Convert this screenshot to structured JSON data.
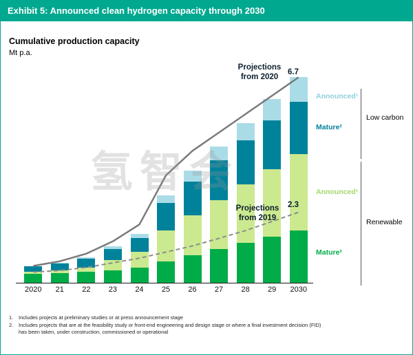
{
  "header": {
    "title": "Exhibit 5: Announced clean hydrogen capacity through 2030"
  },
  "chart": {
    "title": "Cumulative production capacity",
    "unit": "Mt p.a."
  },
  "chart_data": {
    "type": "bar",
    "stacked": true,
    "title": "Cumulative production capacity",
    "ylabel": "Mt p.a.",
    "ylim": [
      0,
      7
    ],
    "grid": false,
    "legend_position": "right",
    "categories": [
      "2020",
      "21",
      "22",
      "23",
      "24",
      "25",
      "26",
      "27",
      "28",
      "29",
      "2030"
    ],
    "series": [
      {
        "name": "Renewable Mature",
        "color": "#00AC47",
        "values": [
          0.3,
          0.32,
          0.35,
          0.4,
          0.5,
          0.7,
          0.9,
          1.1,
          1.3,
          1.5,
          1.7
        ]
      },
      {
        "name": "Renewable Announced",
        "color": "#CBE98F",
        "values": [
          0.05,
          0.08,
          0.15,
          0.35,
          0.5,
          1.0,
          1.3,
          1.6,
          1.9,
          2.2,
          2.5
        ]
      },
      {
        "name": "Low carbon Mature",
        "color": "#00829B",
        "values": [
          0.2,
          0.22,
          0.28,
          0.35,
          0.45,
          0.9,
          1.1,
          1.3,
          1.45,
          1.6,
          1.7
        ]
      },
      {
        "name": "Low carbon Announced",
        "color": "#AADCE8",
        "values": [
          0.0,
          0.03,
          0.05,
          0.1,
          0.15,
          0.25,
          0.35,
          0.45,
          0.55,
          0.7,
          0.8
        ]
      }
    ],
    "lines": [
      {
        "name": "Projections from 2020",
        "style": "solid",
        "color": "#7A7A7A",
        "width": 2.5,
        "end_label": "6.7",
        "values": [
          0.55,
          0.7,
          0.95,
          1.35,
          1.9,
          3.5,
          4.3,
          4.9,
          5.5,
          6.1,
          6.7
        ]
      },
      {
        "name": "Projections from 2019",
        "style": "dashed",
        "color": "#8C8C8C",
        "width": 2,
        "end_label": "2.3",
        "values": [
          0.35,
          0.4,
          0.5,
          0.65,
          0.8,
          1.0,
          1.2,
          1.45,
          1.7,
          2.0,
          2.3
        ]
      }
    ]
  },
  "annotations": {
    "proj2020_label": "Projections\nfrom 2020",
    "proj2020_value": "6.7",
    "proj2019_label": "Projections\nfrom 2019",
    "proj2019_value": "2.3"
  },
  "legend": {
    "low_carbon": {
      "group_label": "Low carbon",
      "announced": {
        "label": "Announced¹",
        "color": "#8ED0DF"
      },
      "mature": {
        "label": "Mature²",
        "color": "#00829B"
      }
    },
    "renewable": {
      "group_label": "Renewable",
      "announced": {
        "label": "Announced¹",
        "color": "#A2D96A"
      },
      "mature": {
        "label": "Mature²",
        "color": "#00AC47"
      }
    }
  },
  "footnotes": [
    {
      "num": "1.",
      "text": "Includes projects at preliminary studies or at press announcement stage"
    },
    {
      "num": "2.",
      "text": "Includes projects that are at the feasibility study or front-end engineering and design stage or where a final investment decision (FID) has been taken, under construction, commissioned or operational"
    }
  ],
  "watermark": "氢智会",
  "colors": {
    "header_bg": "#00A88F",
    "border": "#00A88F",
    "axis": "#1a1a1a",
    "annotation_text": "#0d1f2d"
  }
}
